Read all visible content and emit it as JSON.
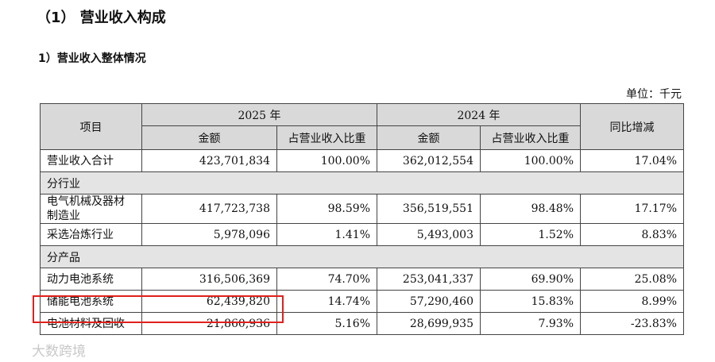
{
  "title": "（1） 营业收入构成",
  "subtitle": "1）营业收入整体情况",
  "unit": "单位：千元",
  "table": {
    "item_header": "项目",
    "year_groups": [
      {
        "year": "2025 年",
        "columns": [
          "金额",
          "占营业收入比重"
        ]
      },
      {
        "year": "2024 年",
        "columns": [
          "金额",
          "占营业收入比重"
        ]
      }
    ],
    "yoy_header": "同比增减",
    "rows": [
      [
        "营业收入合计",
        "423,701,834",
        "100.00%",
        "362,012,554",
        "100.00%",
        "17.04%"
      ],
      [
        "分行业"
      ],
      [
        "电气机械及器材制造业",
        "417,723,738",
        "98.59%",
        "356,519,551",
        "98.48%",
        "17.17%"
      ],
      [
        "采选冶炼行业",
        "5,978,096",
        "1.41%",
        "5,493,003",
        "1.52%",
        "8.83%"
      ],
      [
        "分产品"
      ],
      [
        "动力电池系统",
        "316,506,369",
        "74.70%",
        "253,041,337",
        "69.90%",
        "25.08%"
      ],
      [
        "储能电池系统",
        "62,439,820",
        "14.74%",
        "57,290,460",
        "15.83%",
        "8.99%"
      ],
      [
        "电池材料及回收",
        "21,860,936",
        "5.16%",
        "28,699,935",
        "7.93%",
        "-23.83%"
      ]
    ]
  },
  "watermark": "大数跨境"
}
